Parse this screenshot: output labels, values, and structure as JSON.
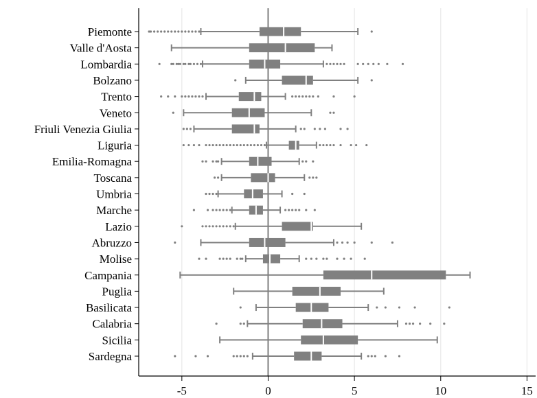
{
  "chart_data": {
    "type": "boxplot",
    "orientation": "horizontal",
    "xlim": [
      -7.5,
      15.5
    ],
    "x_ticks": [
      -5,
      0,
      5,
      10,
      15
    ],
    "x_tick_labels": [
      "-5",
      "0",
      "5",
      "10",
      "15"
    ],
    "grid": "vertical",
    "reference_line": 0,
    "colors": {
      "box": "#808080",
      "grid": "#e8e8e8",
      "axis": "#000000"
    },
    "categories": [
      "Piemonte",
      "Valle d'Aosta",
      "Lombardia",
      "Bolzano",
      "Trento",
      "Veneto",
      "Friuli Venezia Giulia",
      "Liguria",
      "Emilia-Romagna",
      "Toscana",
      "Umbria",
      "Marche",
      "Lazio",
      "Abruzzo",
      "Molise",
      "Campania",
      "Puglia",
      "Basilicata",
      "Calabria",
      "Sicilia",
      "Sardegna"
    ],
    "boxes": [
      {
        "whisker_low": -3.9,
        "q1": -0.5,
        "median": 0.9,
        "q3": 1.9,
        "whisker_high": 5.2,
        "outliers": [
          -6.9,
          -6.8,
          -6.6,
          -6.4,
          -6.2,
          -6.0,
          -5.8,
          -5.6,
          -5.4,
          -5.2,
          -5.0,
          -4.8,
          -4.6,
          -4.4,
          -4.2,
          -4.0,
          6.0
        ]
      },
      {
        "whisker_low": -5.6,
        "q1": -1.1,
        "median": 1.0,
        "q3": 2.7,
        "whisker_high": 3.7,
        "outliers": []
      },
      {
        "whisker_low": -3.8,
        "q1": -1.1,
        "median": -0.2,
        "q3": 0.7,
        "whisker_high": 3.2,
        "outliers": [
          -6.3,
          -5.6,
          -5.5,
          -5.3,
          -5.2,
          -5.1,
          -4.9,
          -4.8,
          -4.6,
          -4.5,
          -4.3,
          -4.1,
          -3.9,
          3.4,
          3.6,
          3.8,
          4.0,
          4.2,
          4.4,
          5.2,
          5.5,
          5.8,
          6.1,
          6.4,
          6.9,
          7.8
        ]
      },
      {
        "whisker_low": -1.3,
        "q1": 0.8,
        "median": 2.2,
        "q3": 2.6,
        "whisker_high": 5.2,
        "outliers": [
          -1.9,
          6.0
        ]
      },
      {
        "whisker_low": -3.6,
        "q1": -1.7,
        "median": -0.8,
        "q3": -0.4,
        "whisker_high": 1.0,
        "outliers": [
          -6.2,
          -5.8,
          -5.4,
          -5.0,
          -4.8,
          -4.6,
          -4.4,
          -4.2,
          -4.0,
          -3.8,
          1.4,
          1.6,
          1.8,
          2.0,
          2.2,
          2.4,
          2.6,
          2.9,
          3.8,
          5.0
        ]
      },
      {
        "whisker_low": -4.9,
        "q1": -2.1,
        "median": -1.1,
        "q3": -0.2,
        "whisker_high": 2.5,
        "outliers": [
          -5.5,
          3.6,
          3.8
        ]
      },
      {
        "whisker_low": -4.3,
        "q1": -2.1,
        "median": -0.8,
        "q3": -0.5,
        "whisker_high": 1.6,
        "outliers": [
          -4.9,
          -4.7,
          -4.5,
          1.9,
          2.1,
          2.7,
          3.0,
          3.3,
          4.2,
          4.6
        ]
      },
      {
        "whisker_low": -0.1,
        "q1": 1.2,
        "median": 1.6,
        "q3": 1.8,
        "whisker_high": 2.8,
        "outliers": [
          -4.9,
          -4.6,
          -4.3,
          -4.0,
          -3.6,
          -3.4,
          -3.2,
          -3.0,
          -2.8,
          -2.6,
          -2.4,
          -2.2,
          -2.0,
          -1.8,
          -1.6,
          -1.4,
          -1.2,
          -1.0,
          -0.8,
          -0.6,
          -0.4,
          -0.2,
          3.0,
          3.2,
          3.4,
          3.6,
          3.8,
          4.2,
          4.8,
          5.1,
          5.7
        ]
      },
      {
        "whisker_low": -2.7,
        "q1": -1.1,
        "median": -0.6,
        "q3": 0.2,
        "whisker_high": 1.8,
        "outliers": [
          -3.8,
          -3.6,
          -3.2,
          -3.0,
          -2.9,
          2.0,
          2.2,
          2.6
        ]
      },
      {
        "whisker_low": -2.7,
        "q1": -1.0,
        "median": 0.0,
        "q3": 0.4,
        "whisker_high": 2.1,
        "outliers": [
          -3.1,
          -2.9,
          2.4,
          2.6,
          2.8
        ]
      },
      {
        "whisker_low": -2.9,
        "q1": -1.4,
        "median": -0.9,
        "q3": -0.3,
        "whisker_high": 0.8,
        "outliers": [
          -3.6,
          -3.4,
          -3.2,
          -3.0,
          1.4,
          2.1
        ]
      },
      {
        "whisker_low": -2.1,
        "q1": -1.1,
        "median": -0.7,
        "q3": -0.3,
        "whisker_high": 0.7,
        "outliers": [
          -4.3,
          -3.5,
          -3.2,
          -3.0,
          -2.8,
          -2.6,
          -2.4,
          -2.2,
          1.0,
          1.2,
          1.4,
          1.6,
          1.8,
          2.2,
          2.7
        ]
      },
      {
        "whisker_low": -1.9,
        "q1": 0.8,
        "median": 2.5,
        "q3": 2.6,
        "whisker_high": 5.4,
        "outliers": [
          -5.0,
          -3.8,
          -3.6,
          -3.4,
          -3.2,
          -3.0,
          -2.8,
          -2.6,
          -2.4,
          -2.2,
          -2.0
        ]
      },
      {
        "whisker_low": -3.9,
        "q1": -1.1,
        "median": -0.2,
        "q3": 1.0,
        "whisker_high": 3.8,
        "outliers": [
          -5.4,
          4.0,
          4.3,
          4.6,
          5.0,
          6.0,
          7.2
        ]
      },
      {
        "whisker_low": -1.3,
        "q1": -0.3,
        "median": 0.1,
        "q3": 0.7,
        "whisker_high": 1.8,
        "outliers": [
          -4.0,
          -3.6,
          -2.8,
          -2.6,
          -2.4,
          -2.2,
          -1.8,
          -1.6,
          -1.5,
          2.2,
          2.5,
          2.8,
          3.2,
          3.4,
          4.0,
          4.4,
          4.8,
          5.6
        ]
      },
      {
        "whisker_low": -5.1,
        "q1": 3.2,
        "median": 6.0,
        "q3": 10.3,
        "whisker_high": 11.7,
        "outliers": []
      },
      {
        "whisker_low": -2.0,
        "q1": 1.4,
        "median": 3.0,
        "q3": 4.2,
        "whisker_high": 6.7,
        "outliers": []
      },
      {
        "whisker_low": -0.7,
        "q1": 1.6,
        "median": 2.5,
        "q3": 3.5,
        "whisker_high": 5.8,
        "outliers": [
          -1.6,
          6.3,
          6.8,
          7.6,
          8.5,
          10.5
        ]
      },
      {
        "whisker_low": -1.2,
        "q1": 2.0,
        "median": 3.1,
        "q3": 4.3,
        "whisker_high": 7.5,
        "outliers": [
          -3.0,
          -1.6,
          -1.4,
          8.0,
          8.2,
          8.4,
          8.8,
          9.4,
          10.2
        ]
      },
      {
        "whisker_low": -2.8,
        "q1": 1.9,
        "median": 3.2,
        "q3": 5.2,
        "whisker_high": 9.8,
        "outliers": []
      },
      {
        "whisker_low": -0.9,
        "q1": 1.5,
        "median": 2.5,
        "q3": 3.1,
        "whisker_high": 5.4,
        "outliers": [
          -5.4,
          -4.2,
          -3.5,
          -2.0,
          -1.8,
          -1.6,
          -1.4,
          -1.2,
          5.8,
          6.0,
          6.2,
          6.8,
          7.6
        ]
      }
    ]
  }
}
